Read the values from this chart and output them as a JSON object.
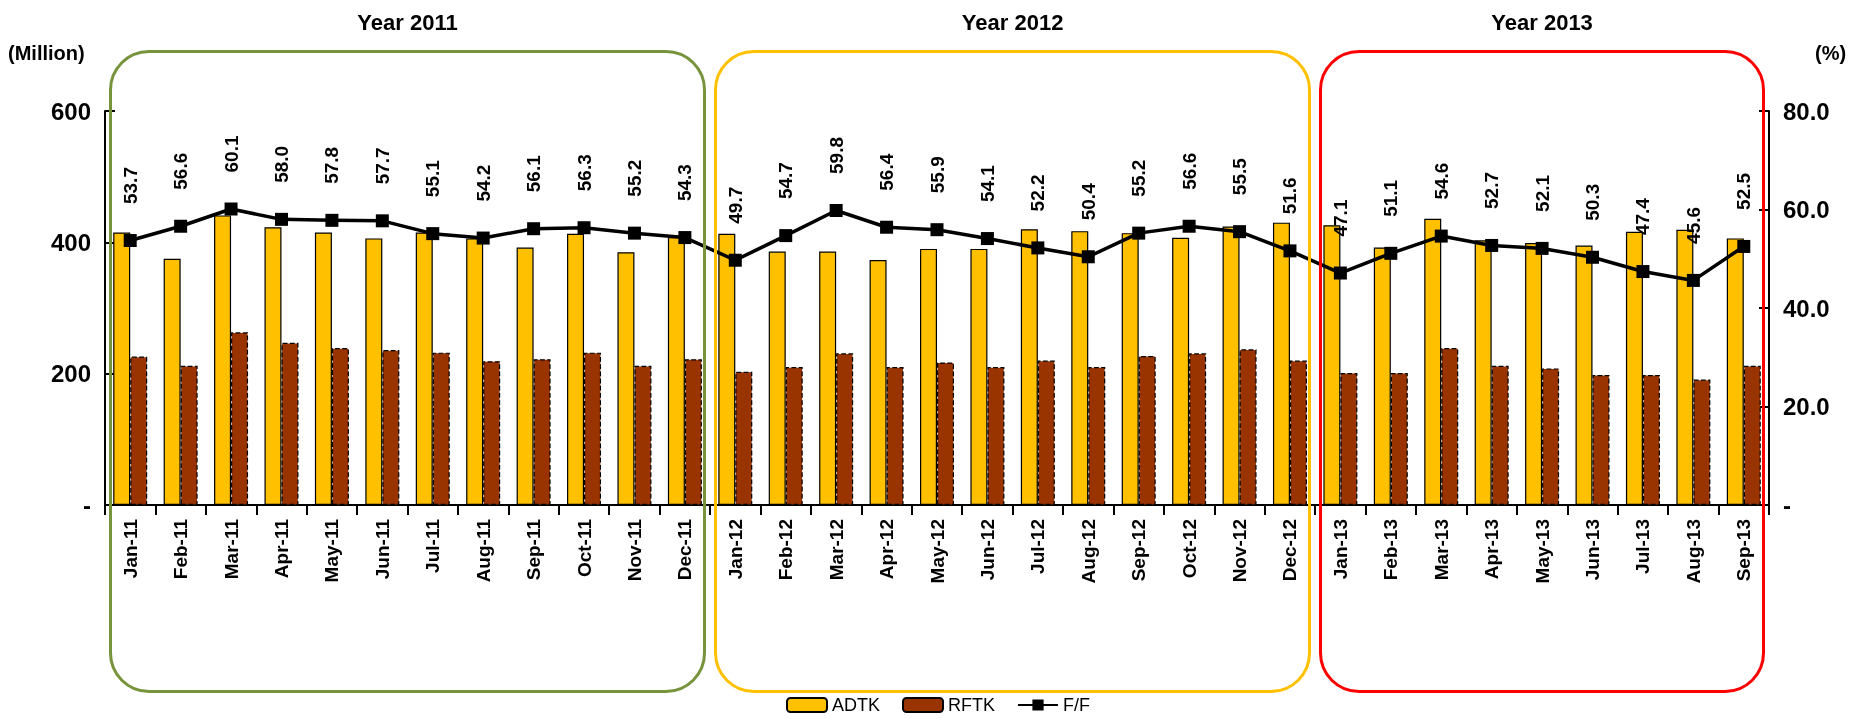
{
  "chart_data": {
    "type": "bar",
    "ylabel": "(Million)",
    "y2label": "(%)",
    "categories": [
      "Jan-11",
      "Feb-11",
      "Mar-11",
      "Apr-11",
      "May-11",
      "Jun-11",
      "Jul-11",
      "Aug-11",
      "Sep-11",
      "Oct-11",
      "Nov-11",
      "Dec-11",
      "Jan-12",
      "Feb-12",
      "Mar-12",
      "Apr-12",
      "May-12",
      "Jun-12",
      "Jul-12",
      "Aug-12",
      "Sep-12",
      "Oct-12",
      "Nov-12",
      "Dec-12",
      "Jan-13",
      "Feb-13",
      "Mar-13",
      "Apr-13",
      "May-13",
      "Jun-13",
      "Jul-13",
      "Aug-13",
      "Sep-13"
    ],
    "series": [
      {
        "name": "ADTK",
        "color": "#ffc000",
        "values": [
          415,
          375,
          441,
          423,
          415,
          406,
          415,
          406,
          392,
          413,
          385,
          408,
          413,
          386,
          386,
          373,
          390,
          390,
          420,
          417,
          414,
          407,
          424,
          430,
          426,
          392,
          436,
          403,
          399,
          395,
          416,
          419,
          406
        ]
      },
      {
        "name": "RFTK",
        "color": "#993300",
        "line_style": "dashed",
        "values": [
          226,
          212,
          263,
          247,
          239,
          236,
          232,
          219,
          222,
          232,
          212,
          222,
          203,
          210,
          231,
          210,
          217,
          210,
          220,
          210,
          227,
          231,
          237,
          220,
          201,
          201,
          239,
          212,
          208,
          198,
          198,
          191,
          212
        ]
      },
      {
        "name": "F/F",
        "type": "line",
        "axis": "y2",
        "color": "#000000",
        "marker": "square",
        "values": [
          53.7,
          56.6,
          60.1,
          58.0,
          57.8,
          57.7,
          55.1,
          54.2,
          56.1,
          56.3,
          55.2,
          54.3,
          49.7,
          54.7,
          59.8,
          56.4,
          55.9,
          54.1,
          52.2,
          50.4,
          55.2,
          56.6,
          55.5,
          51.6,
          47.1,
          51.1,
          54.6,
          52.7,
          52.1,
          50.3,
          47.4,
          45.6,
          52.5
        ],
        "value_labels": [
          "53.7",
          "56.6",
          "60.1",
          "58.0",
          "57.8",
          "57.7",
          "55.1",
          "54.2",
          "56.1",
          "56.3",
          "55.2",
          "54.3",
          "49.7",
          "54.7",
          "59.8",
          "56.4",
          "55.9",
          "54.1",
          "52.2",
          "50.4",
          "55.2",
          "56.6",
          "55.5",
          "51.6",
          "47.1",
          "51.1",
          "54.6",
          "52.7",
          "52.1",
          "50.3",
          "47.4",
          "45.6",
          "52.5"
        ]
      }
    ],
    "ylim": [
      0,
      600
    ],
    "yticks": [
      {
        "value": 0,
        "label": "-"
      },
      200,
      400,
      600
    ],
    "y2lim": [
      0,
      80
    ],
    "y2ticks": [
      {
        "value": 0,
        "label": "-"
      },
      {
        "value": 20,
        "label": "20.0"
      },
      {
        "value": 40,
        "label": "40.0"
      },
      {
        "value": 60,
        "label": "60.0"
      },
      {
        "value": 80,
        "label": "80.0"
      }
    ],
    "annotations": [
      "Year 2011",
      "Year 2012",
      "Year 2013"
    ],
    "grid": false,
    "legend": "bottom"
  }
}
